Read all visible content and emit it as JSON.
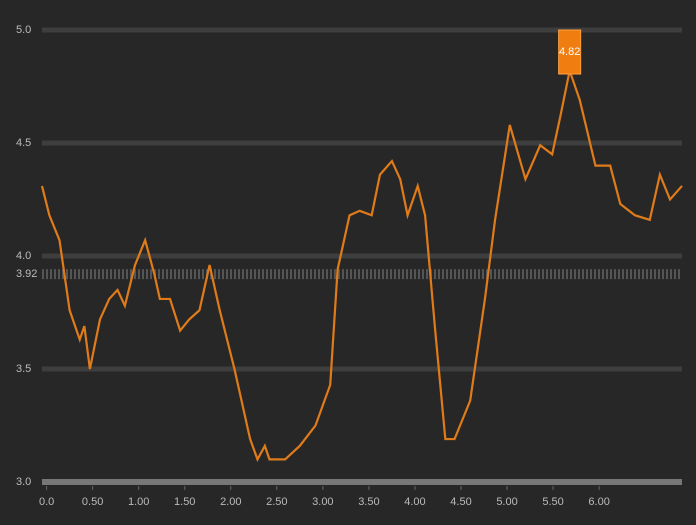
{
  "chart_data": {
    "type": "line",
    "xlim": [
      -0.05,
      6.9
    ],
    "ylim": [
      3.0,
      5.0
    ],
    "xticks": [
      {
        "value": 0,
        "label": "0.0"
      },
      {
        "value": 0.5,
        "label": "0.50"
      },
      {
        "value": 1,
        "label": "1.00"
      },
      {
        "value": 1.5,
        "label": "1.50"
      },
      {
        "value": 2,
        "label": "2.00"
      },
      {
        "value": 2.5,
        "label": "2.50"
      },
      {
        "value": 3,
        "label": "3.00"
      },
      {
        "value": 3.5,
        "label": "3.50"
      },
      {
        "value": 4,
        "label": "4.00"
      },
      {
        "value": 4.5,
        "label": "4.50"
      },
      {
        "value": 5,
        "label": "5.00"
      },
      {
        "value": 5.5,
        "label": "5.50"
      },
      {
        "value": 6,
        "label": "6.00"
      }
    ],
    "yticks": [
      {
        "value": 3,
        "label": "3.0"
      },
      {
        "value": 3.5,
        "label": "3.5"
      },
      {
        "value": 4,
        "label": "4.0"
      },
      {
        "value": 4.5,
        "label": "4.5"
      },
      {
        "value": 5,
        "label": "5.0"
      }
    ],
    "grid": true,
    "reference_line": {
      "value": 3.92,
      "label": "3.92"
    },
    "annotations": [
      {
        "text": "4.82",
        "x": 5.68,
        "y": 4.82
      }
    ],
    "x": [
      -0.05,
      0.03,
      0.14,
      0.25,
      0.36,
      0.41,
      0.47,
      0.58,
      0.68,
      0.77,
      0.85,
      0.96,
      1.07,
      1.17,
      1.23,
      1.34,
      1.45,
      1.55,
      1.66,
      1.77,
      1.88,
      2.04,
      2.21,
      2.29,
      2.37,
      2.42,
      2.59,
      2.75,
      2.92,
      3.08,
      3.16,
      3.29,
      3.4,
      3.53,
      3.62,
      3.75,
      3.84,
      3.92,
      4.03,
      4.11,
      4.22,
      4.33,
      4.43,
      4.6,
      4.76,
      4.87,
      5.03,
      5.2,
      5.36,
      5.49,
      5.58,
      5.68,
      5.79,
      5.96,
      6.12,
      6.23,
      6.39,
      6.55,
      6.66,
      6.77,
      6.9
    ],
    "series": [
      {
        "color": "#e07b1a",
        "values": [
          4.31,
          4.18,
          4.07,
          3.76,
          3.63,
          3.69,
          3.5,
          3.72,
          3.81,
          3.85,
          3.78,
          3.96,
          4.07,
          3.92,
          3.81,
          3.81,
          3.67,
          3.72,
          3.76,
          3.96,
          3.76,
          3.5,
          3.19,
          3.1,
          3.16,
          3.1,
          3.1,
          3.16,
          3.25,
          3.43,
          3.94,
          4.18,
          4.2,
          4.18,
          4.36,
          4.42,
          4.34,
          4.18,
          4.31,
          4.18,
          3.67,
          3.19,
          3.19,
          3.36,
          3.81,
          4.16,
          4.58,
          4.34,
          4.49,
          4.45,
          4.62,
          4.82,
          4.69,
          4.4,
          4.4,
          4.23,
          4.18,
          4.16,
          4.36,
          4.25,
          4.31
        ]
      }
    ]
  }
}
